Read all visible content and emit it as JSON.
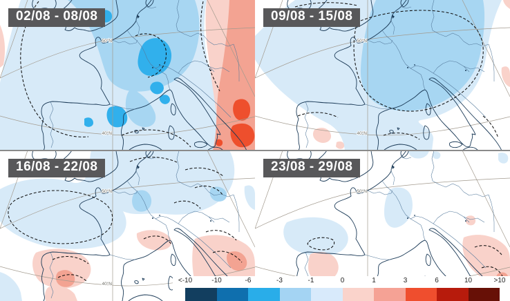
{
  "panels": [
    {
      "label": "02/08 - 08/08"
    },
    {
      "label": "09/08 - 15/08"
    },
    {
      "label": "16/08 - 22/08"
    },
    {
      "label": "23/08 - 29/08"
    }
  ],
  "graticule": {
    "lat_top": "50°N",
    "lat_bottom": "40°N"
  },
  "colorbar": {
    "ticks": [
      "<-10",
      "-10",
      "-6",
      "-3",
      "-1",
      "0",
      "1",
      "3",
      "6",
      "10",
      ">10"
    ],
    "colors": [
      "#123e5f",
      "#0f6fae",
      "#29ade9",
      "#a4d4f3",
      "#d8eafb",
      "#fad3cb",
      "#f5a295",
      "#ef4e2e",
      "#b71b0c",
      "#671006"
    ]
  },
  "palette": {
    "neg_0_to_1": "#d7eaf8",
    "neg_1_to_3": "#a7d6f2",
    "neg_3_to_6": "#31b0ec",
    "pos_0_to_1": "#f9d2ca",
    "pos_1_to_3": "#f3a392",
    "pos_3_to_6": "#ee4f2d",
    "coastline": "#1b3a57",
    "country_border": "#54799b",
    "graticule": "#a29a8e",
    "contour_dash": "#111111",
    "label_box_bg": "#58585a",
    "label_text": "#ffffff",
    "seam": "#8a8a8a",
    "cb_text": "#222222"
  }
}
